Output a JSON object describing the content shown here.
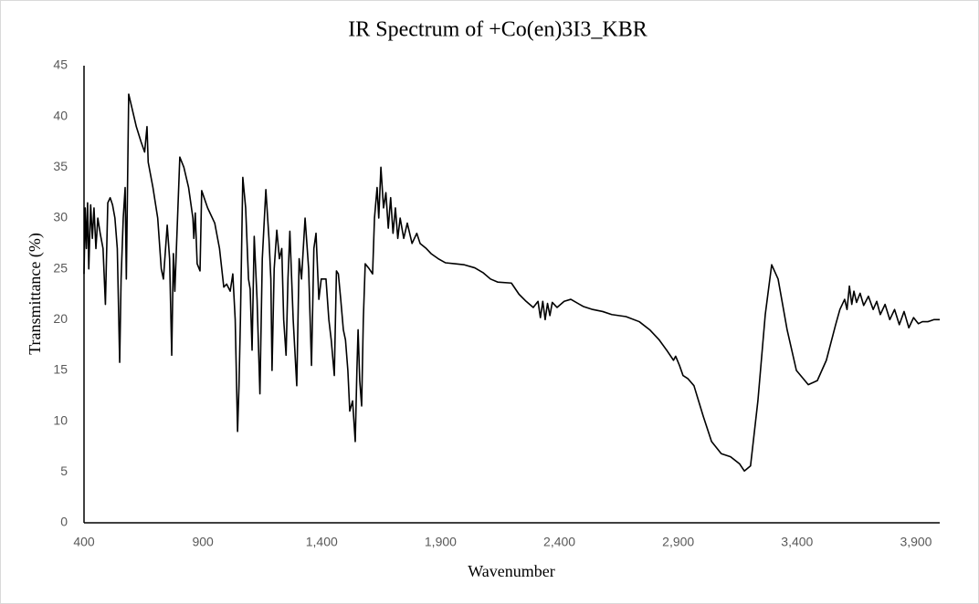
{
  "chart_data": {
    "type": "line",
    "title": "IR Spectrum of +Co(en)3I3_KBR",
    "xlabel": "Wavenumber",
    "ylabel": "Transmittance (%)",
    "xlim": [
      400,
      4000
    ],
    "ylim": [
      0,
      45
    ],
    "xticks": [
      400,
      900,
      {
        "value": 1400,
        "label": "1,400"
      },
      {
        "value": 1900,
        "label": "1,900"
      },
      {
        "value": 2400,
        "label": "2,400"
      },
      {
        "value": 2900,
        "label": "2,900"
      },
      {
        "value": 3400,
        "label": "3,400"
      },
      {
        "value": 3900,
        "label": "3,900"
      }
    ],
    "yticks": [
      0,
      5,
      10,
      15,
      20,
      25,
      30,
      35,
      40,
      45
    ],
    "grid": false,
    "series": [
      {
        "color": "#000000",
        "x": [
          400,
          405,
          410,
          415,
          420,
          428,
          435,
          442,
          450,
          458,
          468,
          480,
          490,
          500,
          510,
          520,
          530,
          540,
          550,
          556,
          565,
          573,
          578,
          588,
          600,
          620,
          640,
          655,
          665,
          670,
          690,
          710,
          725,
          734,
          750,
          760,
          769,
          776,
          782,
          803,
          820,
          840,
          858,
          862,
          868,
          876,
          888,
          895,
          920,
          950,
          970,
          988,
          1000,
          1015,
          1026,
          1036,
          1046,
          1052,
          1058,
          1068,
          1080,
          1092,
          1099,
          1107,
          1116,
          1128,
          1140,
          1150,
          1165,
          1178,
          1186,
          1191,
          1200,
          1211,
          1222,
          1232,
          1240,
          1250,
          1258,
          1266,
          1280,
          1295,
          1305,
          1315,
          1330,
          1345,
          1357,
          1367,
          1376,
          1388,
          1398,
          1418,
          1430,
          1440,
          1453,
          1462,
          1470,
          1480,
          1491,
          1500,
          1510,
          1518,
          1530,
          1541,
          1548,
          1553,
          1560,
          1568,
          1575,
          1583,
          1600,
          1614,
          1622,
          1633,
          1640,
          1649,
          1660,
          1670,
          1680,
          1690,
          1700,
          1710,
          1720,
          1730,
          1745,
          1760,
          1780,
          1800,
          1814,
          1840,
          1860,
          1890,
          1920,
          1960,
          2000,
          2044,
          2080,
          2110,
          2140,
          2198,
          2230,
          2260,
          2290,
          2310,
          2320,
          2330,
          2340,
          2350,
          2360,
          2370,
          2390,
          2420,
          2448,
          2500,
          2540,
          2582,
          2620,
          2680,
          2736,
          2780,
          2820,
          2851,
          2880,
          2889,
          2905,
          2920,
          2940,
          2966,
          3005,
          3040,
          3081,
          3120,
          3158,
          3178,
          3204,
          3235,
          3266,
          3293,
          3320,
          3358,
          3397,
          3447,
          3485,
          3523,
          3562,
          3580,
          3600,
          3610,
          3620,
          3630,
          3639,
          3650,
          3665,
          3680,
          3700,
          3720,
          3735,
          3750,
          3770,
          3790,
          3810,
          3830,
          3850,
          3870,
          3890,
          3910,
          3927,
          3950,
          3975,
          4000
        ],
        "values": [
          24.5,
          31,
          27,
          31.5,
          25,
          31.3,
          28,
          31,
          27,
          30,
          28.5,
          27,
          21.5,
          31.5,
          32,
          31.3,
          30,
          27,
          15.8,
          24,
          30,
          33,
          24,
          42.2,
          41,
          39,
          37.5,
          36.5,
          39,
          35.5,
          33,
          30,
          25,
          24,
          29.3,
          26,
          16.5,
          26.5,
          22.8,
          36,
          35,
          33,
          30,
          28,
          30.5,
          25.5,
          24.8,
          32.7,
          31,
          29.5,
          27,
          23.2,
          23.5,
          22.8,
          24.5,
          20,
          9,
          13.5,
          20,
          34,
          31,
          24,
          23,
          17,
          28.2,
          22,
          12.7,
          26,
          32.8,
          28,
          24,
          15,
          25,
          28.8,
          26,
          27,
          20,
          16.5,
          24,
          28.7,
          20,
          13.5,
          26,
          24,
          30,
          25,
          15.5,
          27,
          28.5,
          22,
          24,
          24,
          20,
          18,
          14.5,
          24.8,
          24.5,
          22,
          19,
          18,
          15,
          11,
          12,
          8,
          15,
          19,
          14,
          11.5,
          20,
          25.5,
          25,
          24.5,
          30,
          33,
          30,
          35,
          31,
          32.5,
          29,
          32,
          28.5,
          31,
          28,
          30,
          28,
          29.5,
          27.5,
          28.5,
          27.5,
          27,
          26.5,
          26,
          25.6,
          25.5,
          25.4,
          25.1,
          24.6,
          24,
          23.7,
          23.6,
          22.5,
          21.8,
          21.2,
          21.8,
          20.2,
          21.8,
          20,
          21.6,
          20.4,
          21.7,
          21.2,
          21.8,
          22,
          21.3,
          21,
          20.8,
          20.5,
          20.3,
          19.8,
          19,
          18,
          17,
          16,
          16.4,
          15.5,
          14.5,
          14.2,
          13.5,
          10.5,
          8,
          6.8,
          6.5,
          5.8,
          5.1,
          5.6,
          12,
          20.5,
          25.4,
          24,
          19,
          15,
          13.6,
          14,
          16,
          19.5,
          21,
          22,
          21,
          23.3,
          21.5,
          22.8,
          21.7,
          22.6,
          21.4,
          22.3,
          21,
          21.8,
          20.5,
          21.5,
          20,
          21,
          19.5,
          20.8,
          19.2,
          20.2,
          19.6,
          19.8,
          19.8,
          20,
          20
        ]
      }
    ]
  }
}
